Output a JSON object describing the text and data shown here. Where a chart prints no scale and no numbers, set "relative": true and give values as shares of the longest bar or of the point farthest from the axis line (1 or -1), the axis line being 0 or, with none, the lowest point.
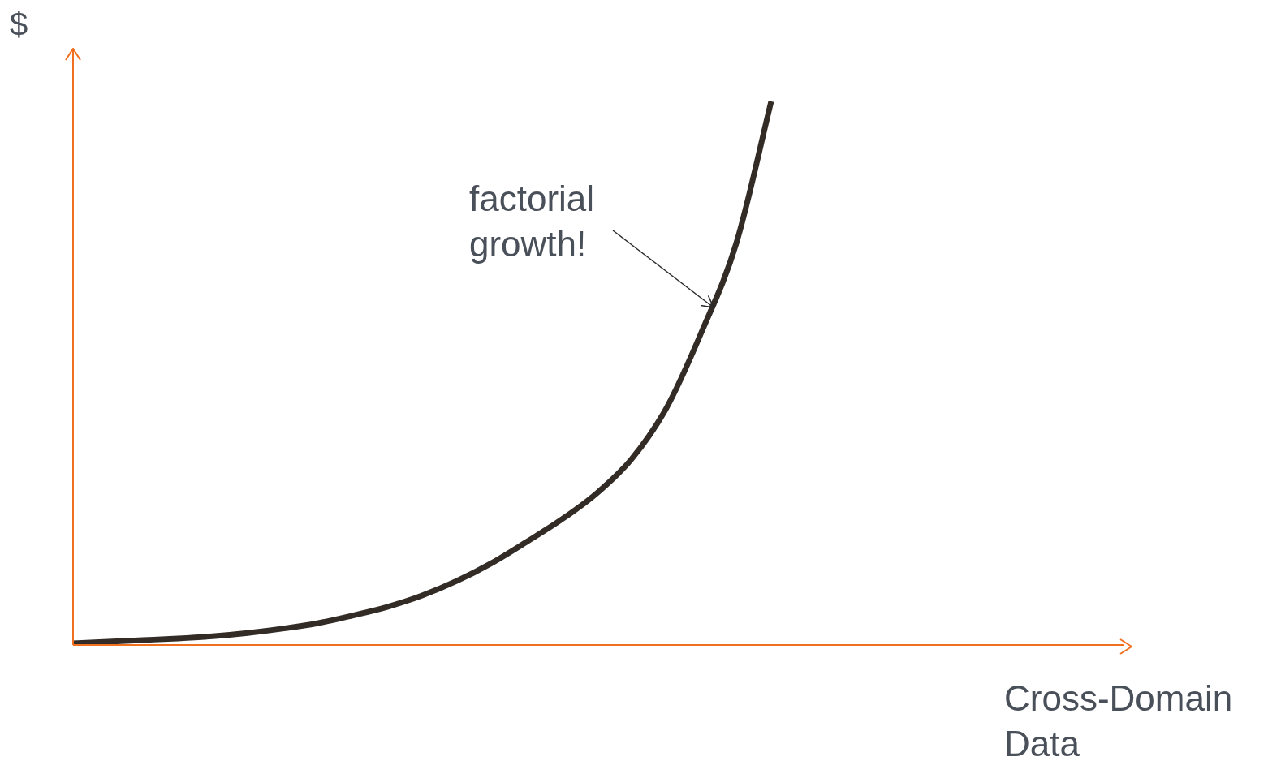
{
  "chart_data": {
    "type": "line",
    "relative": true,
    "ylabel": "$",
    "xlabel": "Cross-Domain Data",
    "annotations": [
      "factorial growth!"
    ],
    "categories": [
      null,
      null,
      null,
      null,
      null,
      null,
      null,
      null,
      null,
      null,
      null,
      null,
      null,
      null,
      null,
      null,
      null,
      null,
      null,
      null,
      null,
      null,
      null,
      null,
      null,
      null,
      null,
      null,
      null,
      null,
      null
    ],
    "series": [
      {
        "color": "#332c26",
        "values": [
          0.003,
          0.006,
          0.009,
          0.012,
          0.016,
          0.022,
          0.03,
          0.04,
          0.054,
          0.07,
          0.091,
          0.118,
          0.151,
          0.19,
          0.231,
          0.279,
          0.342,
          0.436,
          0.575,
          0.739,
          1,
          null,
          null,
          null,
          null,
          null,
          null,
          null,
          null,
          null,
          null
        ]
      }
    ],
    "legend": false,
    "marker": "none",
    "line_style": "solid"
  }
}
